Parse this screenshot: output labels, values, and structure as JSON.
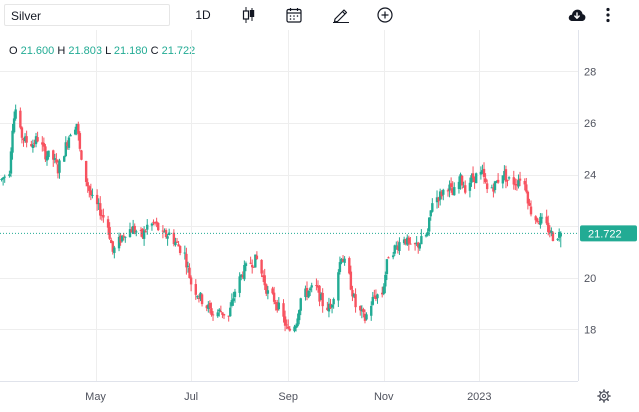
{
  "toolbar": {
    "symbol": "Silver",
    "interval": "1D",
    "icons": [
      "candles-icon",
      "calendar-icon",
      "draw-pencil-icon",
      "add-circle-icon",
      "cloud-download-icon",
      "more-vertical-icon"
    ]
  },
  "legend": {
    "o_label": "O",
    "o": "21.600",
    "h_label": "H",
    "h": "21.803",
    "l_label": "L",
    "l": "21.180",
    "c_label": "C",
    "c": "21.722"
  },
  "colors": {
    "up": "#22ab94",
    "down": "#f7525f",
    "grid": "#eeeeee",
    "axis_text": "#50535e",
    "price_line": "#22ab94"
  },
  "chart_data": {
    "type": "candlestick",
    "title": "",
    "xlabel": "",
    "ylabel": "",
    "ylim": [
      16.0,
      29.6
    ],
    "y_ticks": [
      18,
      20,
      22,
      24,
      26,
      28
    ],
    "y_tick_labels": [
      "18",
      "20",
      "22",
      "24",
      "26",
      "28"
    ],
    "x_ticks": [
      "2022-05-01",
      "2022-07-01",
      "2022-09-01",
      "2022-11-01",
      "2023-01-01"
    ],
    "x_tick_labels": [
      "May",
      "Jul",
      "Sep",
      "Nov",
      "2023"
    ],
    "last_price": 21.722,
    "last_price_label": "21.722",
    "grid": true,
    "series": [
      {
        "type": "close_path",
        "points": [
          [
            "2022-03-02",
            23.8
          ],
          [
            "2022-03-07",
            24.2
          ],
          [
            "2022-03-09",
            25.9
          ],
          [
            "2022-03-11",
            26.5
          ],
          [
            "2022-03-14",
            25.6
          ],
          [
            "2022-03-17",
            25.3
          ],
          [
            "2022-03-22",
            25.2
          ],
          [
            "2022-03-25",
            25.4
          ],
          [
            "2022-03-30",
            24.8
          ],
          [
            "2022-04-04",
            24.6
          ],
          [
            "2022-04-07",
            24.2
          ],
          [
            "2022-04-12",
            25.1
          ],
          [
            "2022-04-15",
            25.7
          ],
          [
            "2022-04-19",
            26.0
          ],
          [
            "2022-04-22",
            24.4
          ],
          [
            "2022-04-26",
            23.6
          ],
          [
            "2022-04-29",
            23.0
          ],
          [
            "2022-05-04",
            22.6
          ],
          [
            "2022-05-09",
            22.0
          ],
          [
            "2022-05-12",
            21.0
          ],
          [
            "2022-05-16",
            21.4
          ],
          [
            "2022-05-20",
            21.8
          ],
          [
            "2022-05-25",
            21.9
          ],
          [
            "2022-05-31",
            21.6
          ],
          [
            "2022-06-03",
            22.0
          ],
          [
            "2022-06-08",
            22.1
          ],
          [
            "2022-06-13",
            21.6
          ],
          [
            "2022-06-17",
            21.7
          ],
          [
            "2022-06-22",
            21.3
          ],
          [
            "2022-06-27",
            20.9
          ],
          [
            "2022-07-01",
            19.8
          ],
          [
            "2022-07-06",
            19.3
          ],
          [
            "2022-07-11",
            18.9
          ],
          [
            "2022-07-15",
            18.6
          ],
          [
            "2022-07-20",
            18.7
          ],
          [
            "2022-07-25",
            18.5
          ],
          [
            "2022-07-29",
            19.5
          ],
          [
            "2022-08-03",
            20.2
          ],
          [
            "2022-08-08",
            20.6
          ],
          [
            "2022-08-12",
            20.7
          ],
          [
            "2022-08-16",
            20.0
          ],
          [
            "2022-08-19",
            19.4
          ],
          [
            "2022-08-24",
            19.1
          ],
          [
            "2022-08-29",
            18.4
          ],
          [
            "2022-09-01",
            17.9
          ],
          [
            "2022-09-06",
            18.3
          ],
          [
            "2022-09-09",
            19.2
          ],
          [
            "2022-09-14",
            19.5
          ],
          [
            "2022-09-19",
            19.6
          ],
          [
            "2022-09-23",
            19.0
          ],
          [
            "2022-09-28",
            18.8
          ],
          [
            "2022-10-03",
            20.3
          ],
          [
            "2022-10-05",
            20.9
          ],
          [
            "2022-10-10",
            20.0
          ],
          [
            "2022-10-14",
            18.9
          ],
          [
            "2022-10-20",
            18.4
          ],
          [
            "2022-10-26",
            19.3
          ],
          [
            "2022-10-31",
            19.4
          ],
          [
            "2022-11-04",
            20.9
          ],
          [
            "2022-11-09",
            21.2
          ],
          [
            "2022-11-14",
            21.6
          ],
          [
            "2022-11-18",
            21.1
          ],
          [
            "2022-11-23",
            21.3
          ],
          [
            "2022-11-29",
            21.7
          ],
          [
            "2022-12-02",
            23.0
          ],
          [
            "2022-12-07",
            23.2
          ],
          [
            "2022-12-12",
            23.6
          ],
          [
            "2022-12-15",
            23.2
          ],
          [
            "2022-12-20",
            23.8
          ],
          [
            "2022-12-23",
            23.5
          ],
          [
            "2022-12-28",
            23.9
          ],
          [
            "2023-01-03",
            24.0
          ],
          [
            "2023-01-06",
            23.4
          ],
          [
            "2023-01-11",
            23.6
          ],
          [
            "2023-01-16",
            24.1
          ],
          [
            "2023-01-19",
            23.8
          ],
          [
            "2023-01-24",
            23.7
          ],
          [
            "2023-01-27",
            23.9
          ],
          [
            "2023-01-31",
            23.5
          ],
          [
            "2023-02-02",
            22.7
          ],
          [
            "2023-02-06",
            22.3
          ],
          [
            "2023-02-09",
            22.2
          ],
          [
            "2023-02-14",
            21.9
          ],
          [
            "2023-02-17",
            21.6
          ],
          [
            "2023-02-22",
            21.722
          ]
        ]
      }
    ]
  }
}
